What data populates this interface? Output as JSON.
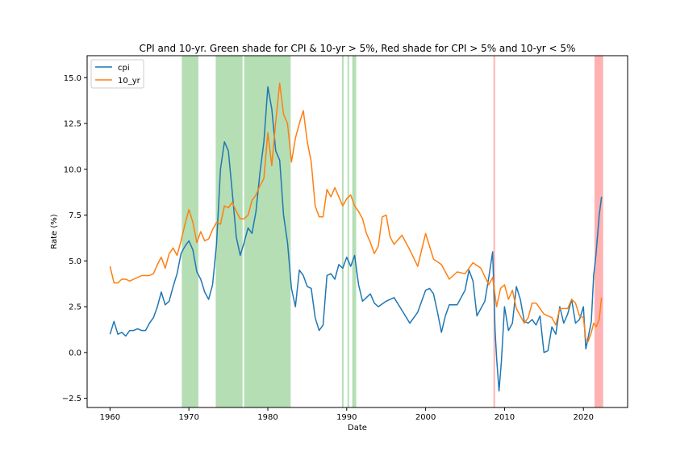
{
  "chart_data": {
    "type": "line",
    "title": "CPI and 10-yr. Green shade for CPI & 10-yr > 5%, Red shade for CPI > 5% and 10-yr < 5%",
    "xlabel": "Date",
    "ylabel": "Rate (%)",
    "xlim": [
      1957.1,
      2025.6
    ],
    "ylim": [
      -3.0,
      16.2
    ],
    "xticks": [
      1960,
      1970,
      1980,
      1990,
      2000,
      2010,
      2020
    ],
    "xtick_labels": [
      "1960",
      "1970",
      "1980",
      "1990",
      "2000",
      "2010",
      "2020"
    ],
    "yticks": [
      -2.5,
      0.0,
      2.5,
      5.0,
      7.5,
      10.0,
      12.5,
      15.0
    ],
    "ytick_labels": [
      "−2.5",
      "0.0",
      "2.5",
      "5.0",
      "7.5",
      "10.0",
      "12.5",
      "15.0"
    ],
    "grid": false,
    "legend_position": "upper-left",
    "colors": {
      "cpi": "#1f77b4",
      "10_yr": "#ff7f0e",
      "green_shade": "#2ca02c",
      "red_shade": "#ff0000"
    },
    "shaded_regions": {
      "green": [
        [
          1969.1,
          1971.2
        ],
        [
          1973.4,
          1976.8
        ],
        [
          1977.0,
          1982.9
        ],
        [
          1989.4,
          1989.6
        ],
        [
          1990.1,
          1990.3
        ],
        [
          1990.7,
          1991.2
        ]
      ],
      "red": [
        [
          2008.6,
          2008.8
        ],
        [
          2021.4,
          2022.5
        ]
      ]
    },
    "series": [
      {
        "name": "cpi",
        "x": [
          1960.0,
          1960.5,
          1961.0,
          1961.5,
          1962.0,
          1962.5,
          1963.0,
          1963.5,
          1964.0,
          1964.5,
          1965.0,
          1965.5,
          1966.0,
          1966.5,
          1967.0,
          1967.5,
          1968.0,
          1968.5,
          1969.0,
          1969.5,
          1970.0,
          1970.5,
          1971.0,
          1971.5,
          1972.0,
          1972.5,
          1973.0,
          1973.5,
          1974.0,
          1974.5,
          1975.0,
          1975.5,
          1976.0,
          1976.5,
          1977.0,
          1977.5,
          1978.0,
          1978.5,
          1979.0,
          1979.5,
          1980.0,
          1980.5,
          1981.0,
          1981.5,
          1982.0,
          1982.5,
          1983.0,
          1983.5,
          1984.0,
          1984.5,
          1985.0,
          1985.5,
          1986.0,
          1986.5,
          1987.0,
          1987.5,
          1988.0,
          1988.5,
          1989.0,
          1989.5,
          1990.0,
          1990.5,
          1991.0,
          1991.5,
          1992.0,
          1992.5,
          1993.0,
          1993.5,
          1994.0,
          1995.0,
          1996.0,
          1997.0,
          1998.0,
          1999.0,
          2000.0,
          2000.5,
          2001.0,
          2001.5,
          2002.0,
          2002.5,
          2003.0,
          2004.0,
          2005.0,
          2005.5,
          2006.0,
          2006.5,
          2007.0,
          2007.5,
          2008.0,
          2008.5,
          2008.8,
          2009.0,
          2009.3,
          2009.6,
          2010.0,
          2010.5,
          2011.0,
          2011.5,
          2012.0,
          2012.5,
          2013.0,
          2013.5,
          2014.0,
          2014.5,
          2015.0,
          2015.5,
          2016.0,
          2016.5,
          2017.0,
          2017.5,
          2018.0,
          2018.5,
          2019.0,
          2019.5,
          2020.0,
          2020.3,
          2020.5,
          2021.0,
          2021.3,
          2021.6,
          2022.0,
          2022.3
        ],
        "values": [
          1.0,
          1.7,
          1.0,
          1.1,
          0.9,
          1.2,
          1.2,
          1.3,
          1.2,
          1.2,
          1.6,
          1.9,
          2.5,
          3.3,
          2.6,
          2.8,
          3.6,
          4.3,
          5.4,
          5.8,
          6.1,
          5.6,
          4.4,
          4.0,
          3.3,
          2.9,
          3.7,
          5.9,
          10.0,
          11.5,
          11.0,
          8.7,
          6.3,
          5.3,
          6.0,
          6.8,
          6.5,
          7.7,
          9.8,
          11.5,
          14.5,
          13.3,
          11.0,
          10.5,
          7.5,
          6.0,
          3.5,
          2.5,
          4.5,
          4.2,
          3.6,
          3.5,
          1.9,
          1.2,
          1.5,
          4.2,
          4.3,
          4.0,
          4.8,
          4.6,
          5.2,
          4.7,
          5.3,
          3.7,
          2.8,
          3.0,
          3.2,
          2.7,
          2.5,
          2.8,
          3.0,
          2.3,
          1.6,
          2.2,
          3.4,
          3.5,
          3.2,
          2.2,
          1.1,
          2.0,
          2.6,
          2.6,
          3.4,
          4.5,
          3.9,
          2.0,
          2.4,
          2.8,
          4.1,
          5.5,
          1.2,
          -0.3,
          -2.1,
          -0.5,
          2.5,
          1.2,
          1.6,
          3.6,
          2.9,
          1.7,
          1.6,
          1.8,
          1.5,
          2.0,
          0.0,
          0.1,
          1.4,
          1.0,
          2.5,
          1.6,
          2.1,
          2.9,
          1.6,
          1.8,
          2.5,
          0.2,
          0.6,
          1.7,
          4.2,
          5.4,
          7.5,
          8.5
        ]
      },
      {
        "name": "10_yr",
        "x": [
          1960.0,
          1960.5,
          1961.0,
          1961.5,
          1962.0,
          1962.5,
          1963.0,
          1963.5,
          1964.0,
          1964.5,
          1965.0,
          1965.5,
          1966.0,
          1966.5,
          1967.0,
          1967.5,
          1968.0,
          1968.5,
          1969.0,
          1969.5,
          1970.0,
          1970.5,
          1971.0,
          1971.5,
          1972.0,
          1972.5,
          1973.0,
          1973.5,
          1974.0,
          1974.5,
          1975.0,
          1975.5,
          1976.0,
          1976.5,
          1977.0,
          1977.5,
          1978.0,
          1978.5,
          1979.0,
          1979.5,
          1980.0,
          1980.5,
          1981.0,
          1981.5,
          1982.0,
          1982.5,
          1983.0,
          1983.5,
          1984.0,
          1984.5,
          1985.0,
          1985.5,
          1986.0,
          1986.5,
          1987.0,
          1987.5,
          1988.0,
          1988.5,
          1989.0,
          1989.5,
          1990.0,
          1990.5,
          1991.0,
          1991.5,
          1992.0,
          1992.5,
          1993.0,
          1993.5,
          1994.0,
          1994.5,
          1995.0,
          1995.5,
          1996.0,
          1997.0,
          1998.0,
          1999.0,
          2000.0,
          2001.0,
          2002.0,
          2003.0,
          2004.0,
          2005.0,
          2006.0,
          2007.0,
          2008.0,
          2008.5,
          2009.0,
          2009.5,
          2010.0,
          2010.5,
          2011.0,
          2011.5,
          2012.0,
          2012.5,
          2013.0,
          2013.5,
          2014.0,
          2015.0,
          2016.0,
          2016.5,
          2017.0,
          2018.0,
          2018.5,
          2019.0,
          2019.5,
          2020.0,
          2020.3,
          2020.6,
          2021.0,
          2021.3,
          2021.6,
          2022.0,
          2022.3
        ],
        "values": [
          4.7,
          3.8,
          3.8,
          4.0,
          4.0,
          3.9,
          4.0,
          4.1,
          4.2,
          4.2,
          4.2,
          4.3,
          4.8,
          5.2,
          4.6,
          5.4,
          5.7,
          5.3,
          6.1,
          7.0,
          7.8,
          7.1,
          6.0,
          6.6,
          6.1,
          6.2,
          6.7,
          7.1,
          7.0,
          8.0,
          7.9,
          8.2,
          7.7,
          7.3,
          7.3,
          7.5,
          8.3,
          8.6,
          9.1,
          9.5,
          12.0,
          10.2,
          12.6,
          14.7,
          13.0,
          12.5,
          10.4,
          11.7,
          12.5,
          13.2,
          11.5,
          10.4,
          8.0,
          7.4,
          7.4,
          8.9,
          8.5,
          9.0,
          8.5,
          8.0,
          8.4,
          8.6,
          8.0,
          7.7,
          7.3,
          6.5,
          6.0,
          5.4,
          5.8,
          7.4,
          7.5,
          6.3,
          5.9,
          6.4,
          5.6,
          4.7,
          6.5,
          5.1,
          4.8,
          4.0,
          4.4,
          4.3,
          4.9,
          4.6,
          3.7,
          4.1,
          2.5,
          3.5,
          3.7,
          2.9,
          3.4,
          2.4,
          2.0,
          1.6,
          1.9,
          2.7,
          2.7,
          2.1,
          1.9,
          1.5,
          2.4,
          2.4,
          2.9,
          2.7,
          2.0,
          1.9,
          0.7,
          0.6,
          1.1,
          1.6,
          1.4,
          1.8,
          3.0
        ]
      }
    ]
  }
}
